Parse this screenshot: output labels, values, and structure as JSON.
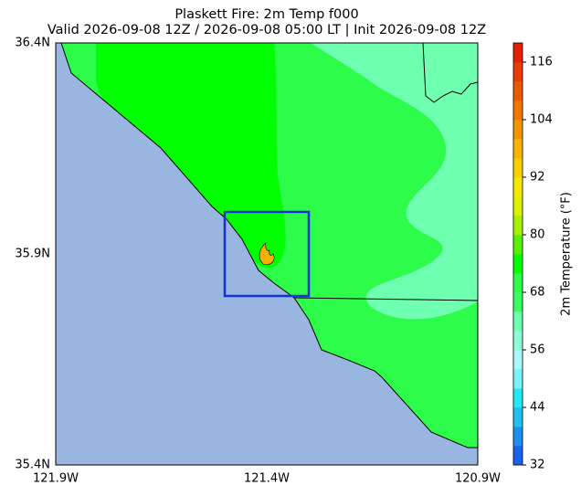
{
  "title": "Plaskett Fire: 2m Temp f000",
  "subtitle": "Valid 2026-09-08 12Z / 2026-09-08 05:00 LT | Init 2026-09-08 12Z",
  "map": {
    "lat_labels": [
      "36.4N",
      "35.9N",
      "35.4N"
    ],
    "lon_labels": [
      "121.9W",
      "121.4W",
      "120.9W"
    ]
  },
  "colorbar": {
    "label": "2m Temperature (°F)",
    "range": [
      32,
      120
    ],
    "ticks": [
      32,
      44,
      56,
      68,
      80,
      92,
      104,
      116
    ],
    "colors": [
      "#1a62e8",
      "#1e8ff0",
      "#20c0f4",
      "#22e8f8",
      "#7af2fa",
      "#a8f8fc",
      "#8ffcd8",
      "#6effb0",
      "#3bfc60",
      "#2efc4a",
      "#00ff00",
      "#5af000",
      "#a6f000",
      "#dcf000",
      "#f4e800",
      "#f8d000",
      "#f8b400",
      "#f49600",
      "#f07800",
      "#ec5a00",
      "#e83c00",
      "#e42000"
    ]
  }
}
